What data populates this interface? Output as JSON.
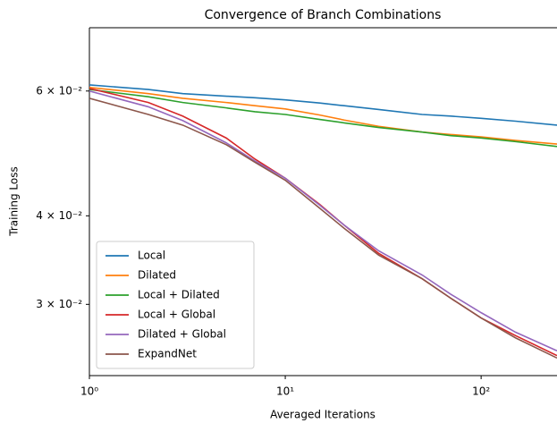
{
  "chart_data": {
    "type": "line",
    "title": "Convergence of Branch Combinations",
    "xlabel": "Averaged Iterations",
    "ylabel": "Training Loss",
    "xscale": "log",
    "yscale": "log",
    "xlim": [
      1,
      244
    ],
    "ylim": [
      0.0238,
      0.0737
    ],
    "xticks": [
      {
        "value": 1,
        "label": "10⁰"
      },
      {
        "value": 10,
        "label": "10¹"
      },
      {
        "value": 100,
        "label": "10²"
      }
    ],
    "yticks": [
      {
        "value": 0.03,
        "label": "3 × 10⁻²"
      },
      {
        "value": 0.04,
        "label": "4 × 10⁻²"
      },
      {
        "value": 0.06,
        "label": "6 × 10⁻²"
      }
    ],
    "legend": "lower left",
    "x": [
      1,
      2,
      3,
      5,
      7,
      10,
      15,
      20,
      30,
      50,
      70,
      100,
      150,
      244
    ],
    "series": [
      {
        "name": "Local",
        "color": "#1f77b4",
        "values": [
          0.0612,
          0.0603,
          0.0595,
          0.059,
          0.0587,
          0.0583,
          0.0577,
          0.0572,
          0.0565,
          0.0556,
          0.0553,
          0.0549,
          0.0544,
          0.0537
        ]
      },
      {
        "name": "Dilated",
        "color": "#ff7f0e",
        "values": [
          0.0607,
          0.0595,
          0.0586,
          0.0578,
          0.0572,
          0.0566,
          0.0555,
          0.0546,
          0.0535,
          0.0525,
          0.0521,
          0.0517,
          0.0511,
          0.0505
        ]
      },
      {
        "name": "Local + Dilated",
        "color": "#2ca02c",
        "values": [
          0.0603,
          0.0589,
          0.0578,
          0.0568,
          0.0561,
          0.0556,
          0.0547,
          0.0541,
          0.0533,
          0.0525,
          0.0519,
          0.0515,
          0.0509,
          0.0501
        ]
      },
      {
        "name": "Local + Global",
        "color": "#d62728",
        "values": [
          0.0605,
          0.0578,
          0.0553,
          0.0515,
          0.0481,
          0.0452,
          0.0415,
          0.0388,
          0.0354,
          0.0326,
          0.0306,
          0.0287,
          0.0271,
          0.0254
        ]
      },
      {
        "name": "Dilated + Global",
        "color": "#9467bd",
        "values": [
          0.06,
          0.057,
          0.0545,
          0.0507,
          0.0478,
          0.0452,
          0.0414,
          0.0388,
          0.0357,
          0.033,
          0.031,
          0.0292,
          0.0274,
          0.0258
        ]
      },
      {
        "name": "ExpandNet",
        "color": "#8c564b",
        "values": [
          0.0586,
          0.0556,
          0.0537,
          0.0504,
          0.0476,
          0.0449,
          0.041,
          0.0384,
          0.0352,
          0.0326,
          0.0306,
          0.0287,
          0.0269,
          0.0252
        ]
      }
    ]
  }
}
